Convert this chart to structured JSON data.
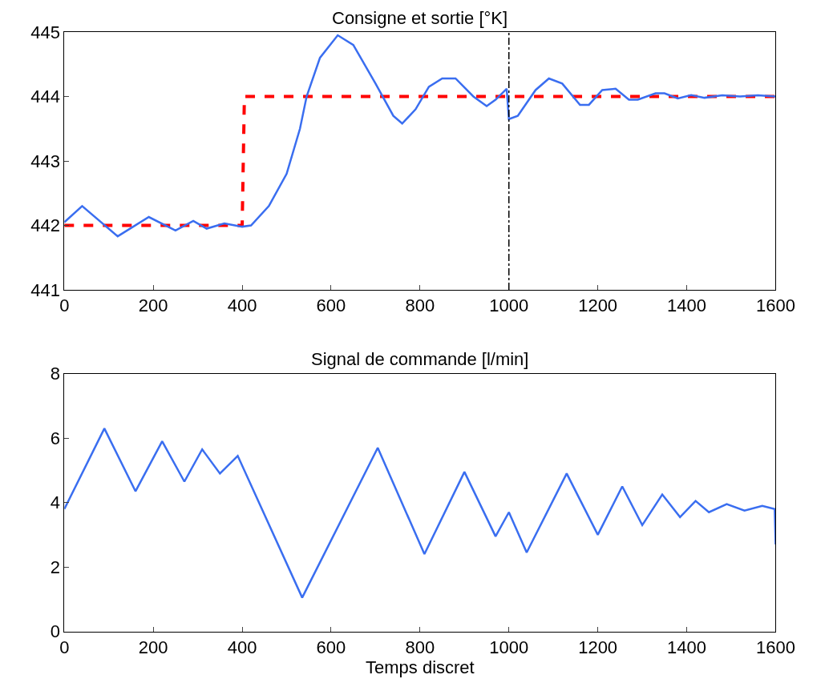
{
  "chart_data": [
    {
      "type": "line",
      "title": "Consigne et sortie [°K]",
      "xlim": [
        0,
        1600
      ],
      "ylim": [
        441,
        445
      ],
      "xticks": [
        0,
        200,
        400,
        600,
        800,
        1000,
        1200,
        1400,
        1600
      ],
      "yticks": [
        441,
        442,
        443,
        444,
        445
      ],
      "grid": false,
      "legend": false,
      "series": [
        {
          "color": "#ff0000",
          "line_style": "dashed",
          "x": [
            0,
            400,
            405,
            1600
          ],
          "values": [
            442,
            442,
            444,
            444
          ]
        },
        {
          "color": "#3a6ef0",
          "line_style": "solid",
          "x": [
            0,
            40,
            120,
            190,
            250,
            290,
            320,
            360,
            400,
            420,
            460,
            500,
            530,
            545,
            575,
            615,
            650,
            700,
            740,
            760,
            790,
            820,
            850,
            880,
            920,
            950,
            970,
            995,
            1000,
            1020,
            1060,
            1090,
            1120,
            1160,
            1180,
            1210,
            1240,
            1270,
            1290,
            1330,
            1350,
            1380,
            1410,
            1440,
            1480,
            1520,
            1560,
            1600
          ],
          "values": [
            442.05,
            442.3,
            441.83,
            442.13,
            441.92,
            442.07,
            441.95,
            442.03,
            441.98,
            442.0,
            442.3,
            442.8,
            443.5,
            444.0,
            444.6,
            444.95,
            444.8,
            444.2,
            443.7,
            443.58,
            443.8,
            444.15,
            444.28,
            444.28,
            444.0,
            443.85,
            443.95,
            444.12,
            443.65,
            443.7,
            444.1,
            444.28,
            444.2,
            443.87,
            443.87,
            444.1,
            444.12,
            443.95,
            443.95,
            444.05,
            444.05,
            443.97,
            444.02,
            443.98,
            444.02,
            444.0,
            444.02,
            444.0
          ]
        }
      ],
      "ref_lines": [
        {
          "axis": "x",
          "value": 1000,
          "color": "#000000",
          "line_style": "dashed"
        }
      ]
    },
    {
      "type": "line",
      "title": "Signal de commande [l/min]",
      "xlabel": "Temps discret",
      "xlim": [
        0,
        1600
      ],
      "ylim": [
        0,
        8
      ],
      "xticks": [
        0,
        200,
        400,
        600,
        800,
        1000,
        1200,
        1400,
        1600
      ],
      "yticks": [
        0,
        2,
        4,
        6,
        8
      ],
      "grid": false,
      "legend": false,
      "series": [
        {
          "color": "#3a6ef0",
          "line_style": "solid",
          "x": [
            0,
            90,
            160,
            220,
            270,
            310,
            350,
            390,
            535,
            705,
            810,
            900,
            970,
            1000,
            1040,
            1130,
            1200,
            1255,
            1300,
            1345,
            1385,
            1420,
            1450,
            1490,
            1530,
            1570,
            1598,
            1600
          ],
          "values": [
            3.8,
            6.3,
            4.35,
            5.9,
            4.65,
            5.65,
            4.9,
            5.45,
            1.05,
            5.7,
            2.4,
            4.95,
            2.95,
            3.7,
            2.45,
            4.9,
            3.0,
            4.5,
            3.3,
            4.25,
            3.55,
            4.05,
            3.7,
            3.95,
            3.75,
            3.9,
            3.8,
            2.7
          ]
        }
      ]
    }
  ]
}
